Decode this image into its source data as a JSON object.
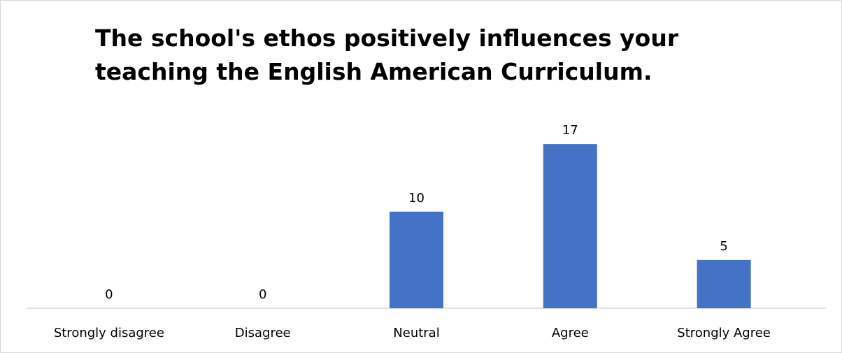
{
  "chart_data": {
    "type": "bar",
    "title": "The school's ethos positively influences your teaching the English American Curriculum.",
    "categories": [
      "Strongly disagree",
      "Disagree",
      "Neutral",
      "Agree",
      "Strongly Agree"
    ],
    "values": [
      0,
      0,
      10,
      17,
      5
    ],
    "data_labels": [
      "0",
      "0",
      "10",
      "17",
      "5"
    ],
    "xlabel": "",
    "ylabel": "",
    "ylim": [
      0,
      20
    ],
    "grid": false,
    "legend": "none",
    "colors": {
      "bar": "#4472c4",
      "axis": "#d9d9d9",
      "text": "#000000"
    }
  }
}
